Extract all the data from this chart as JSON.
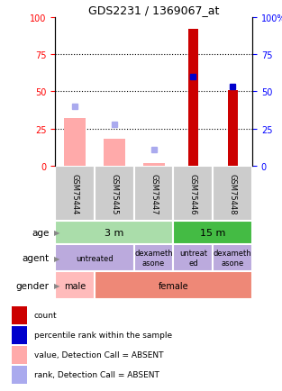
{
  "title": "GDS2231 / 1369067_at",
  "samples": [
    "GSM75444",
    "GSM75445",
    "GSM75447",
    "GSM75446",
    "GSM75448"
  ],
  "count_values": [
    0,
    0,
    0,
    92,
    51
  ],
  "percentile_rank": [
    null,
    null,
    null,
    60,
    53
  ],
  "value_absent": [
    32,
    18,
    2,
    null,
    null
  ],
  "rank_absent": [
    40,
    28,
    11,
    null,
    null
  ],
  "count_color": "#cc0000",
  "percentile_color": "#0000cc",
  "value_absent_color": "#ffaaaa",
  "rank_absent_color": "#aaaaee",
  "age_map": [
    "3 m",
    "3 m",
    "3 m",
    "15 m",
    "15 m"
  ],
  "age_light": "#aaddaa",
  "age_dark": "#44bb44",
  "agent_map": [
    "untreated",
    "untreated",
    "dexameth\nasone",
    "untreat\ned",
    "dexameth\nasone"
  ],
  "agent_color": "#bbaadd",
  "gender_map": [
    "male",
    "female",
    "female",
    "female",
    "female"
  ],
  "gender_male_color": "#ffbbbb",
  "gender_female_color": "#ee8877",
  "sample_bg": "#cccccc",
  "legend_items": [
    {
      "color": "#cc0000",
      "label": "count"
    },
    {
      "color": "#0000cc",
      "label": "percentile rank within the sample"
    },
    {
      "color": "#ffaaaa",
      "label": "value, Detection Call = ABSENT"
    },
    {
      "color": "#aaaaee",
      "label": "rank, Detection Call = ABSENT"
    }
  ]
}
